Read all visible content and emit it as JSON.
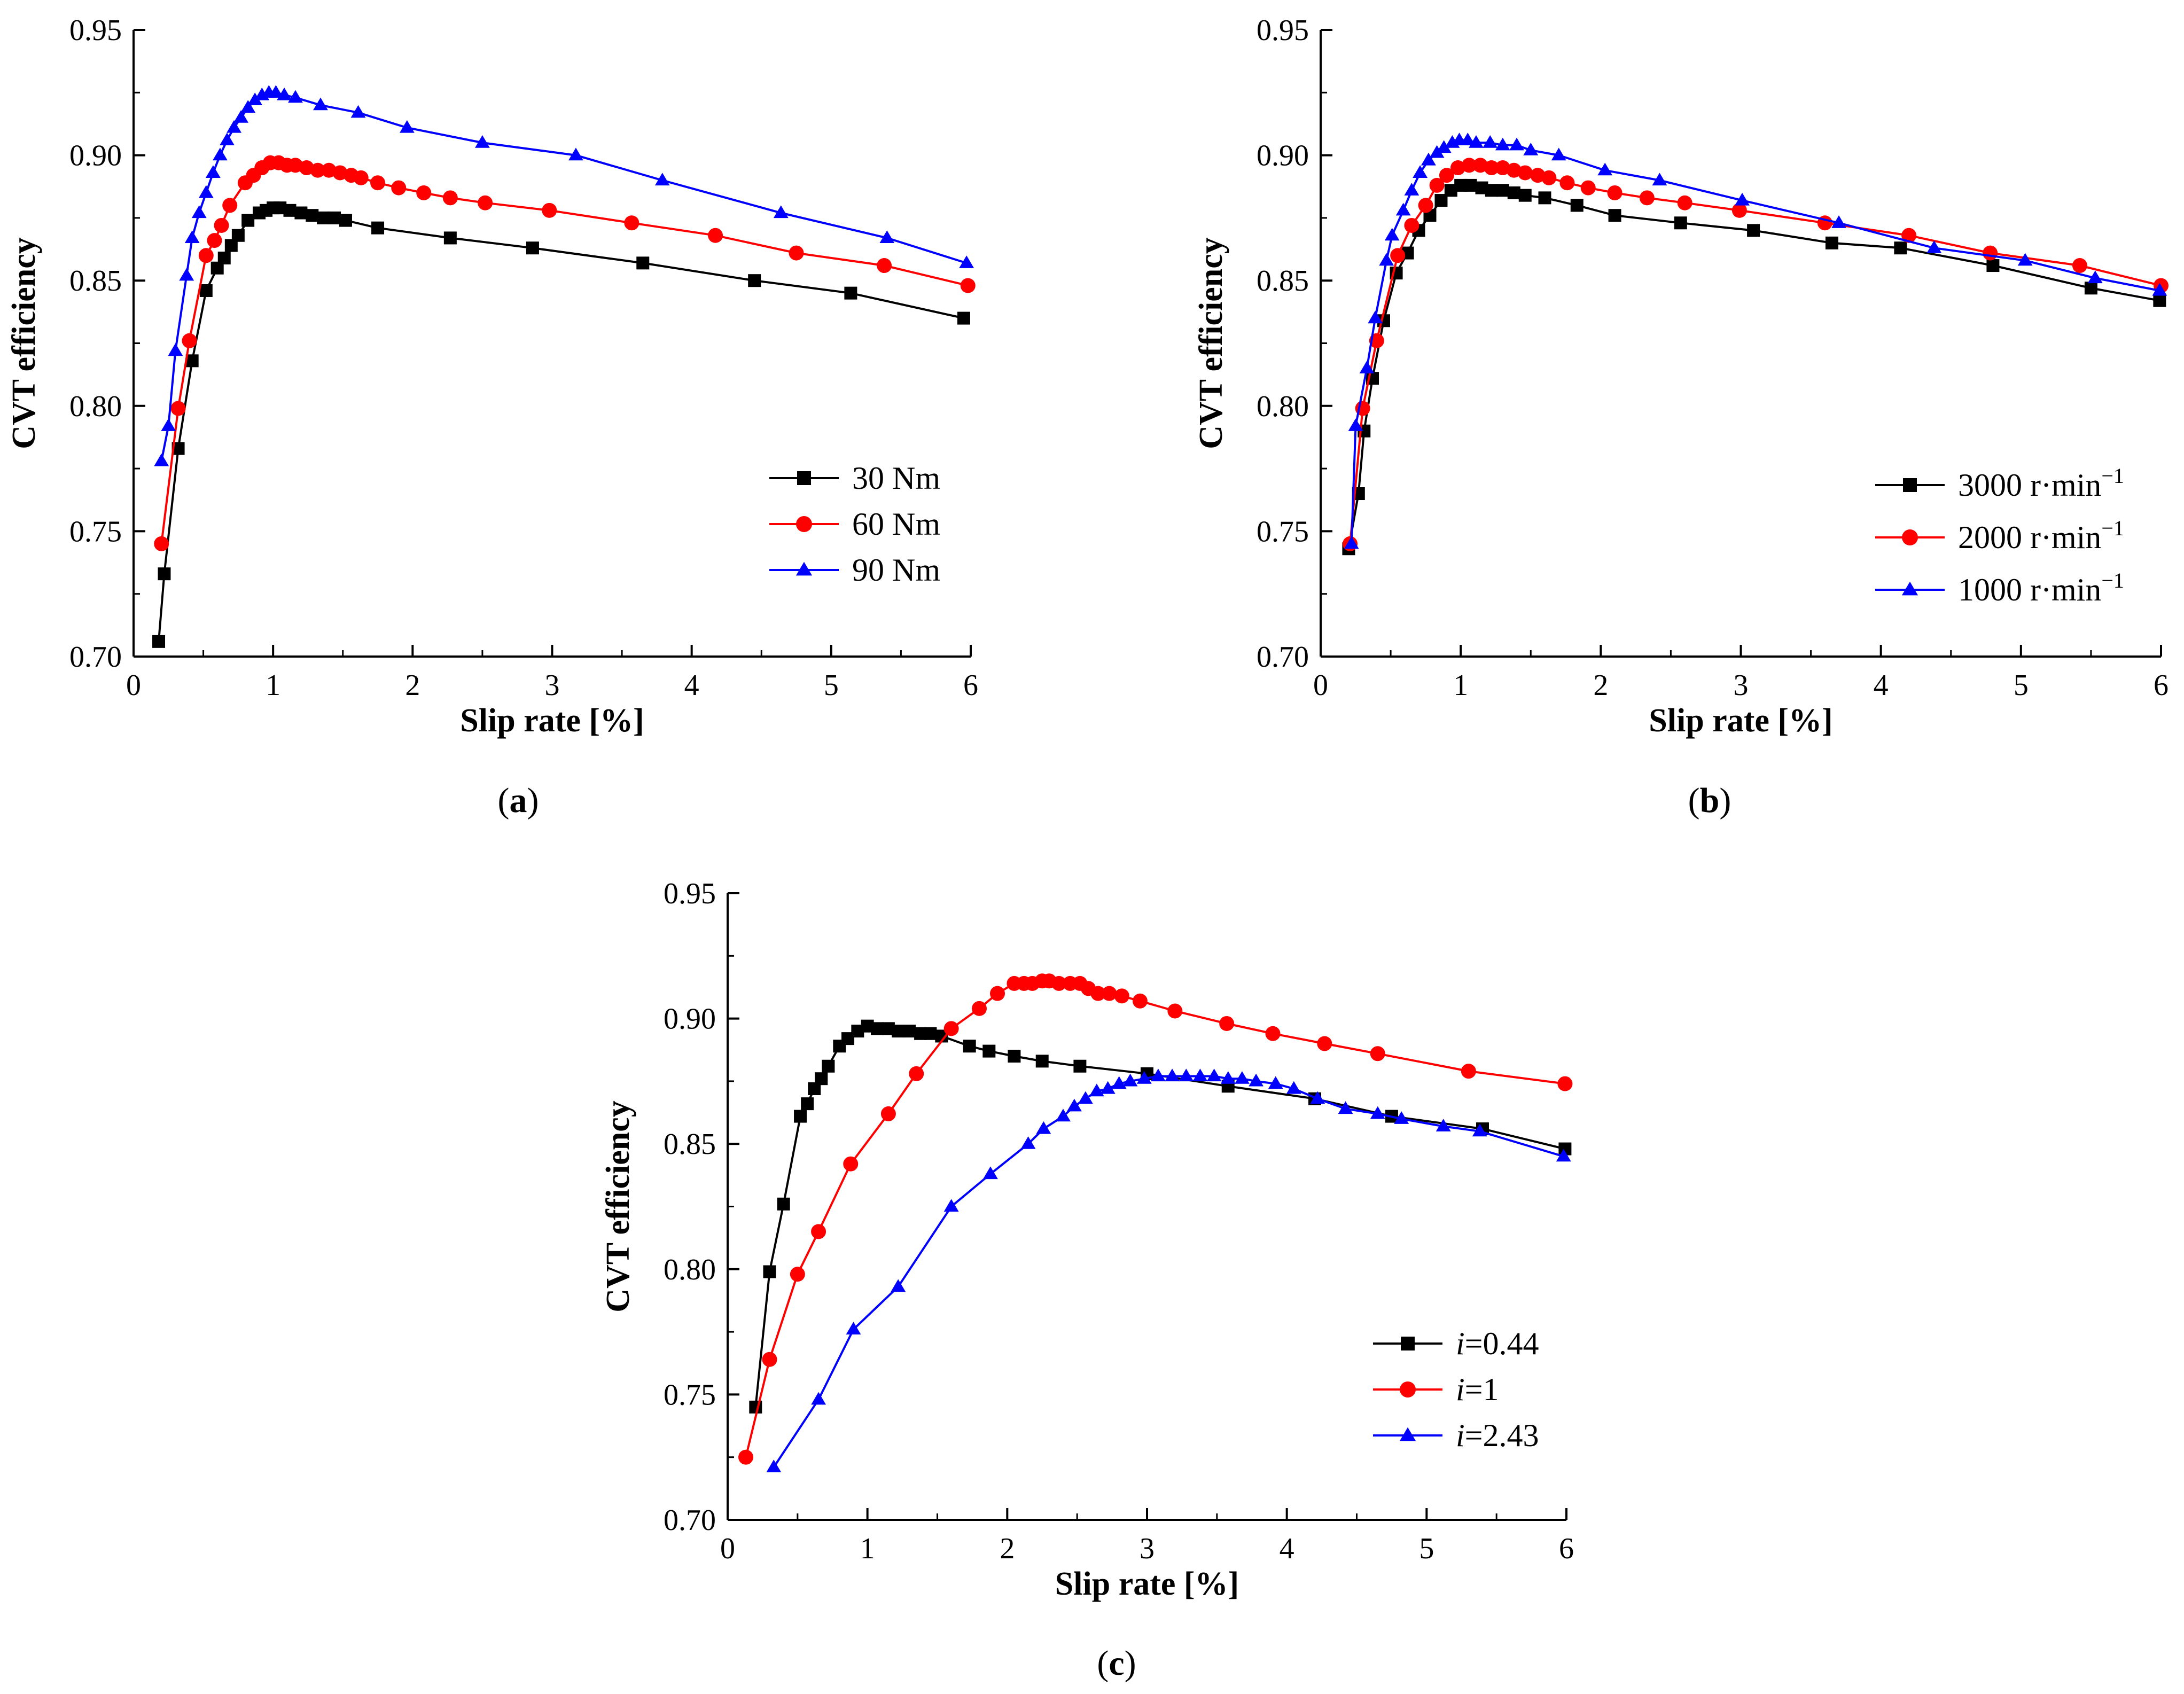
{
  "chart_data": [
    {
      "type": "line",
      "panel_label": "(a)",
      "xlabel": "Slip rate [%]",
      "ylabel": "CVT efficiency",
      "xlim": [
        0,
        6
      ],
      "ylim": [
        0.7,
        0.95
      ],
      "xticks": [
        "0",
        "1",
        "2",
        "3",
        "4",
        "5",
        "6"
      ],
      "yticks": [
        "0.70",
        "0.75",
        "0.80",
        "0.85",
        "0.90",
        "0.95"
      ],
      "legend_position": "bottom-right",
      "series": [
        {
          "name": "30 Nm",
          "marker": "square",
          "color": "#000000",
          "x": [
            0.18,
            0.22,
            0.32,
            0.42,
            0.52,
            0.6,
            0.65,
            0.7,
            0.75,
            0.82,
            0.9,
            0.95,
            1.0,
            1.05,
            1.12,
            1.2,
            1.28,
            1.36,
            1.44,
            1.52,
            1.75,
            2.27,
            2.86,
            3.65,
            4.45,
            5.14,
            5.95
          ],
          "y": [
            0.706,
            0.733,
            0.783,
            0.818,
            0.846,
            0.855,
            0.859,
            0.864,
            0.868,
            0.874,
            0.877,
            0.878,
            0.879,
            0.879,
            0.878,
            0.877,
            0.876,
            0.875,
            0.875,
            0.874,
            0.871,
            0.867,
            0.863,
            0.857,
            0.85,
            0.845,
            0.835
          ]
        },
        {
          "name": "60 Nm",
          "marker": "circle",
          "color": "#ff0000",
          "x": [
            0.2,
            0.32,
            0.4,
            0.52,
            0.58,
            0.63,
            0.69,
            0.8,
            0.86,
            0.92,
            0.98,
            1.04,
            1.1,
            1.16,
            1.24,
            1.32,
            1.4,
            1.48,
            1.56,
            1.63,
            1.75,
            1.9,
            2.08,
            2.27,
            2.52,
            2.98,
            3.57,
            4.17,
            4.75,
            5.38,
            5.98
          ],
          "y": [
            0.745,
            0.799,
            0.826,
            0.86,
            0.866,
            0.872,
            0.88,
            0.889,
            0.892,
            0.895,
            0.897,
            0.897,
            0.896,
            0.896,
            0.895,
            0.894,
            0.894,
            0.893,
            0.892,
            0.891,
            0.889,
            0.887,
            0.885,
            0.883,
            0.881,
            0.878,
            0.873,
            0.868,
            0.861,
            0.856,
            0.848
          ]
        },
        {
          "name": "90 Nm",
          "marker": "triangle",
          "color": "#0000ff",
          "x": [
            0.2,
            0.25,
            0.3,
            0.38,
            0.42,
            0.47,
            0.52,
            0.57,
            0.62,
            0.67,
            0.72,
            0.77,
            0.82,
            0.87,
            0.92,
            0.97,
            1.02,
            1.08,
            1.16,
            1.34,
            1.61,
            1.96,
            2.5,
            3.17,
            3.79,
            4.64,
            5.4,
            5.97
          ],
          "y": [
            0.778,
            0.792,
            0.822,
            0.852,
            0.867,
            0.877,
            0.885,
            0.893,
            0.9,
            0.906,
            0.911,
            0.915,
            0.919,
            0.922,
            0.924,
            0.925,
            0.925,
            0.924,
            0.923,
            0.92,
            0.917,
            0.911,
            0.905,
            0.9,
            0.89,
            0.877,
            0.867,
            0.857
          ]
        }
      ]
    },
    {
      "type": "line",
      "panel_label": "(b)",
      "xlabel": "Slip rate [%]",
      "ylabel": "CVT efficiency",
      "xlim": [
        0,
        6
      ],
      "ylim": [
        0.7,
        0.95
      ],
      "xticks": [
        "0",
        "1",
        "2",
        "3",
        "4",
        "5",
        "6"
      ],
      "yticks": [
        "0.70",
        "0.75",
        "0.80",
        "0.85",
        "0.90",
        "0.95"
      ],
      "legend_position": "bottom-right",
      "series": [
        {
          "name": "3000 r·min",
          "superscript": "−1",
          "marker": "square",
          "color": "#000000",
          "x": [
            0.2,
            0.27,
            0.31,
            0.37,
            0.45,
            0.54,
            0.62,
            0.7,
            0.78,
            0.86,
            0.93,
            1.0,
            1.07,
            1.15,
            1.22,
            1.3,
            1.38,
            1.46,
            1.6,
            1.83,
            2.1,
            2.57,
            3.09,
            3.65,
            4.14,
            4.8,
            5.5,
            5.99
          ],
          "y": [
            0.743,
            0.765,
            0.79,
            0.811,
            0.834,
            0.853,
            0.861,
            0.87,
            0.876,
            0.882,
            0.886,
            0.888,
            0.888,
            0.887,
            0.886,
            0.886,
            0.885,
            0.884,
            0.883,
            0.88,
            0.876,
            0.873,
            0.87,
            0.865,
            0.863,
            0.856,
            0.847,
            0.842
          ]
        },
        {
          "name": "2000 r·min",
          "superscript": "−1",
          "marker": "circle",
          "color": "#ff0000",
          "x": [
            0.21,
            0.3,
            0.4,
            0.55,
            0.65,
            0.75,
            0.83,
            0.9,
            0.98,
            1.06,
            1.14,
            1.22,
            1.3,
            1.38,
            1.46,
            1.55,
            1.63,
            1.76,
            1.91,
            2.1,
            2.33,
            2.6,
            2.99,
            3.6,
            4.2,
            4.78,
            5.42,
            6.0
          ],
          "y": [
            0.745,
            0.799,
            0.826,
            0.86,
            0.872,
            0.88,
            0.888,
            0.892,
            0.895,
            0.896,
            0.896,
            0.895,
            0.895,
            0.894,
            0.893,
            0.892,
            0.891,
            0.889,
            0.887,
            0.885,
            0.883,
            0.881,
            0.878,
            0.873,
            0.868,
            0.861,
            0.856,
            0.848
          ]
        },
        {
          "name": "1000 r·min",
          "superscript": "−1",
          "marker": "triangle",
          "color": "#0000ff",
          "x": [
            0.22,
            0.25,
            0.33,
            0.39,
            0.47,
            0.51,
            0.59,
            0.65,
            0.71,
            0.77,
            0.83,
            0.88,
            0.94,
            0.99,
            1.05,
            1.11,
            1.21,
            1.3,
            1.4,
            1.5,
            1.7,
            2.03,
            2.42,
            3.01,
            3.7,
            4.38,
            5.03,
            5.53,
            5.99
          ],
          "y": [
            0.745,
            0.792,
            0.815,
            0.835,
            0.858,
            0.868,
            0.878,
            0.886,
            0.893,
            0.898,
            0.901,
            0.903,
            0.905,
            0.906,
            0.906,
            0.905,
            0.905,
            0.904,
            0.904,
            0.902,
            0.9,
            0.894,
            0.89,
            0.882,
            0.873,
            0.863,
            0.858,
            0.851,
            0.846
          ]
        }
      ]
    },
    {
      "type": "line",
      "panel_label": "(c)",
      "xlabel": "Slip rate [%]",
      "ylabel": "CVT efficiency",
      "xlim": [
        0,
        6
      ],
      "ylim": [
        0.7,
        0.95
      ],
      "xticks": [
        "0",
        "1",
        "2",
        "3",
        "4",
        "5",
        "6"
      ],
      "yticks": [
        "0.70",
        "0.75",
        "0.80",
        "0.85",
        "0.90",
        "0.95"
      ],
      "legend_position": "bottom-right",
      "series": [
        {
          "name": "=0.44",
          "italic_prefix": "i",
          "marker": "square",
          "color": "#000000",
          "x": [
            0.2,
            0.3,
            0.4,
            0.52,
            0.57,
            0.62,
            0.67,
            0.72,
            0.8,
            0.86,
            0.93,
            1.0,
            1.07,
            1.15,
            1.22,
            1.3,
            1.38,
            1.45,
            1.53,
            1.73,
            1.87,
            2.05,
            2.25,
            2.52,
            3.0,
            3.58,
            4.2,
            4.75,
            5.4,
            5.99
          ],
          "y": [
            0.745,
            0.799,
            0.826,
            0.861,
            0.866,
            0.872,
            0.876,
            0.881,
            0.889,
            0.892,
            0.895,
            0.897,
            0.896,
            0.896,
            0.895,
            0.895,
            0.894,
            0.894,
            0.893,
            0.889,
            0.887,
            0.885,
            0.883,
            0.881,
            0.878,
            0.873,
            0.868,
            0.861,
            0.856,
            0.848
          ]
        },
        {
          "name": "=1",
          "italic_prefix": "i",
          "marker": "circle",
          "color": "#ff0000",
          "x": [
            0.13,
            0.3,
            0.5,
            0.65,
            0.88,
            1.15,
            1.35,
            1.6,
            1.8,
            1.93,
            2.05,
            2.12,
            2.18,
            2.25,
            2.3,
            2.37,
            2.45,
            2.52,
            2.58,
            2.65,
            2.73,
            2.82,
            2.95,
            3.2,
            3.57,
            3.9,
            4.27,
            4.65,
            5.3,
            5.99
          ],
          "y": [
            0.725,
            0.764,
            0.798,
            0.815,
            0.842,
            0.862,
            0.878,
            0.896,
            0.904,
            0.91,
            0.914,
            0.914,
            0.914,
            0.915,
            0.915,
            0.914,
            0.914,
            0.914,
            0.912,
            0.91,
            0.91,
            0.909,
            0.907,
            0.903,
            0.898,
            0.894,
            0.89,
            0.886,
            0.879,
            0.874
          ]
        },
        {
          "name": "=2.43",
          "italic_prefix": "i",
          "marker": "triangle",
          "color": "#0000ff",
          "x": [
            0.33,
            0.65,
            0.9,
            1.22,
            1.6,
            1.88,
            2.15,
            2.26,
            2.4,
            2.48,
            2.56,
            2.64,
            2.72,
            2.8,
            2.88,
            2.98,
            3.08,
            3.18,
            3.28,
            3.38,
            3.48,
            3.58,
            3.68,
            3.78,
            3.92,
            4.05,
            4.22,
            4.42,
            4.65,
            4.82,
            5.12,
            5.38,
            5.98
          ],
          "y": [
            0.721,
            0.748,
            0.776,
            0.793,
            0.825,
            0.838,
            0.85,
            0.856,
            0.861,
            0.865,
            0.868,
            0.871,
            0.872,
            0.874,
            0.875,
            0.876,
            0.877,
            0.877,
            0.877,
            0.877,
            0.877,
            0.876,
            0.876,
            0.875,
            0.874,
            0.872,
            0.868,
            0.864,
            0.862,
            0.86,
            0.857,
            0.855,
            0.845
          ]
        }
      ]
    }
  ]
}
